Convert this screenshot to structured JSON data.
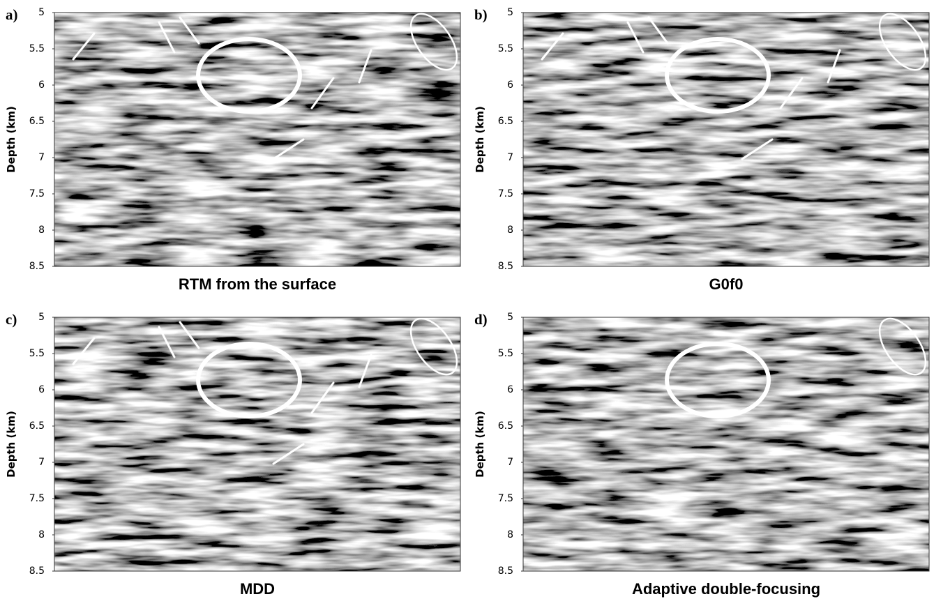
{
  "chart_data": [
    {
      "type": "image",
      "panel_label": "a)",
      "title": "RTM from the surface",
      "y_label": "Depth (km)",
      "ylim": [
        5,
        8.5
      ],
      "yticks": [
        5,
        5.5,
        6,
        6.5,
        7,
        7.5,
        8,
        8.5
      ]
    },
    {
      "type": "image",
      "panel_label": "b)",
      "title": "G0f0",
      "y_label": "Depth (km)",
      "ylim": [
        5,
        8.5
      ],
      "yticks": [
        5,
        5.5,
        6,
        6.5,
        7,
        7.5,
        8,
        8.5
      ]
    },
    {
      "type": "image",
      "panel_label": "c)",
      "title": "MDD",
      "y_label": "Depth (km)",
      "ylim": [
        5,
        8.5
      ],
      "yticks": [
        5,
        5.5,
        6,
        6.5,
        7,
        7.5,
        8,
        8.5
      ]
    },
    {
      "type": "image",
      "panel_label": "d)",
      "title": "Adaptive double-focusing",
      "y_label": "Depth (km)",
      "ylim": [
        5,
        8.5
      ],
      "yticks": [
        5,
        5.5,
        6,
        6.5,
        7,
        7.5,
        8,
        8.5
      ]
    }
  ]
}
